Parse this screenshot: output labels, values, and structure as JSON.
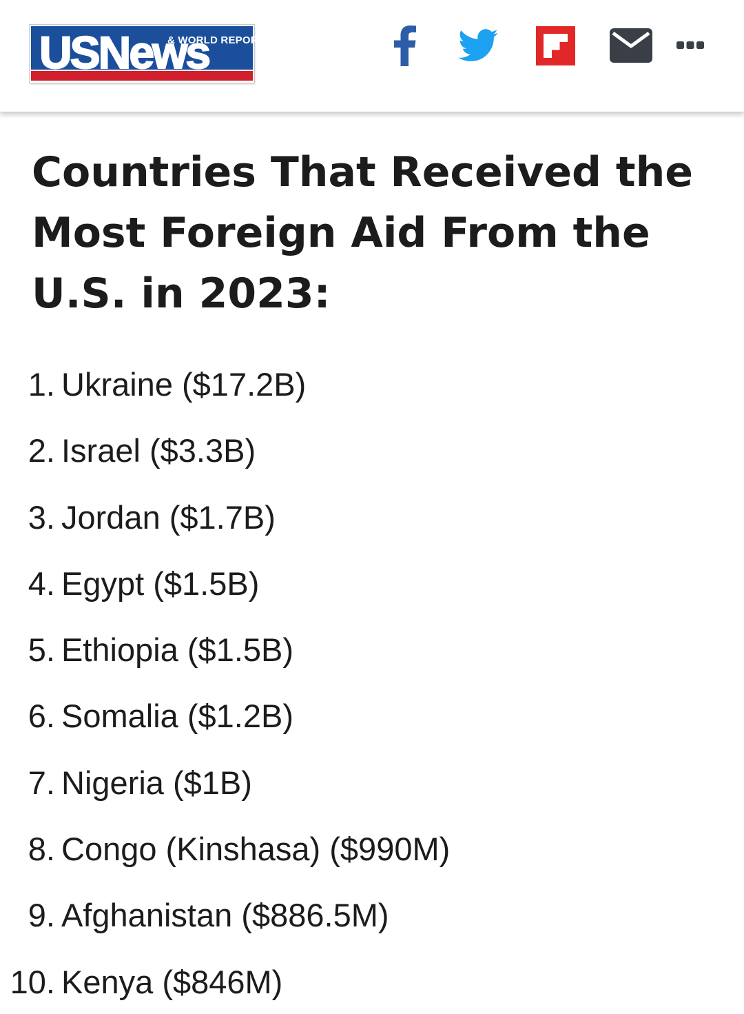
{
  "header": {
    "logo": {
      "main_text": "USNews",
      "sub_text": "& WORLD REPORT",
      "brand_blue": "#1b4e9b",
      "brand_red": "#d0202e"
    },
    "share_buttons": [
      {
        "name": "facebook",
        "icon": "facebook-icon",
        "color": "#2d5da8"
      },
      {
        "name": "twitter",
        "icon": "twitter-bird-icon",
        "color": "#1da1f2"
      },
      {
        "name": "flipboard",
        "icon": "flipboard-icon",
        "color": "#e12828"
      },
      {
        "name": "email",
        "icon": "envelope-icon",
        "color": "#3a3f47"
      },
      {
        "name": "more",
        "icon": "more-dots-icon",
        "color": "#3a3f47"
      }
    ]
  },
  "article": {
    "headline": "Countries That Received the Most Foreign Aid From the U.S. in 2023:",
    "items": [
      {
        "number": "1.",
        "text": "Ukraine ($17.2B)"
      },
      {
        "number": "2.",
        "text": "Israel ($3.3B)"
      },
      {
        "number": "3.",
        "text": "Jordan ($1.7B)"
      },
      {
        "number": "4.",
        "text": "Egypt ($1.5B)"
      },
      {
        "number": "5.",
        "text": "Ethiopia ($1.5B)"
      },
      {
        "number": "6.",
        "text": "Somalia ($1.2B)"
      },
      {
        "number": "7.",
        "text": "Nigeria ($1B)"
      },
      {
        "number": "8.",
        "text": "Congo (Kinshasa) ($990M)"
      },
      {
        "number": "9.",
        "text": "Afghanistan ($886.5M)"
      },
      {
        "number": "10.",
        "text": "Kenya ($846M)"
      }
    ]
  }
}
